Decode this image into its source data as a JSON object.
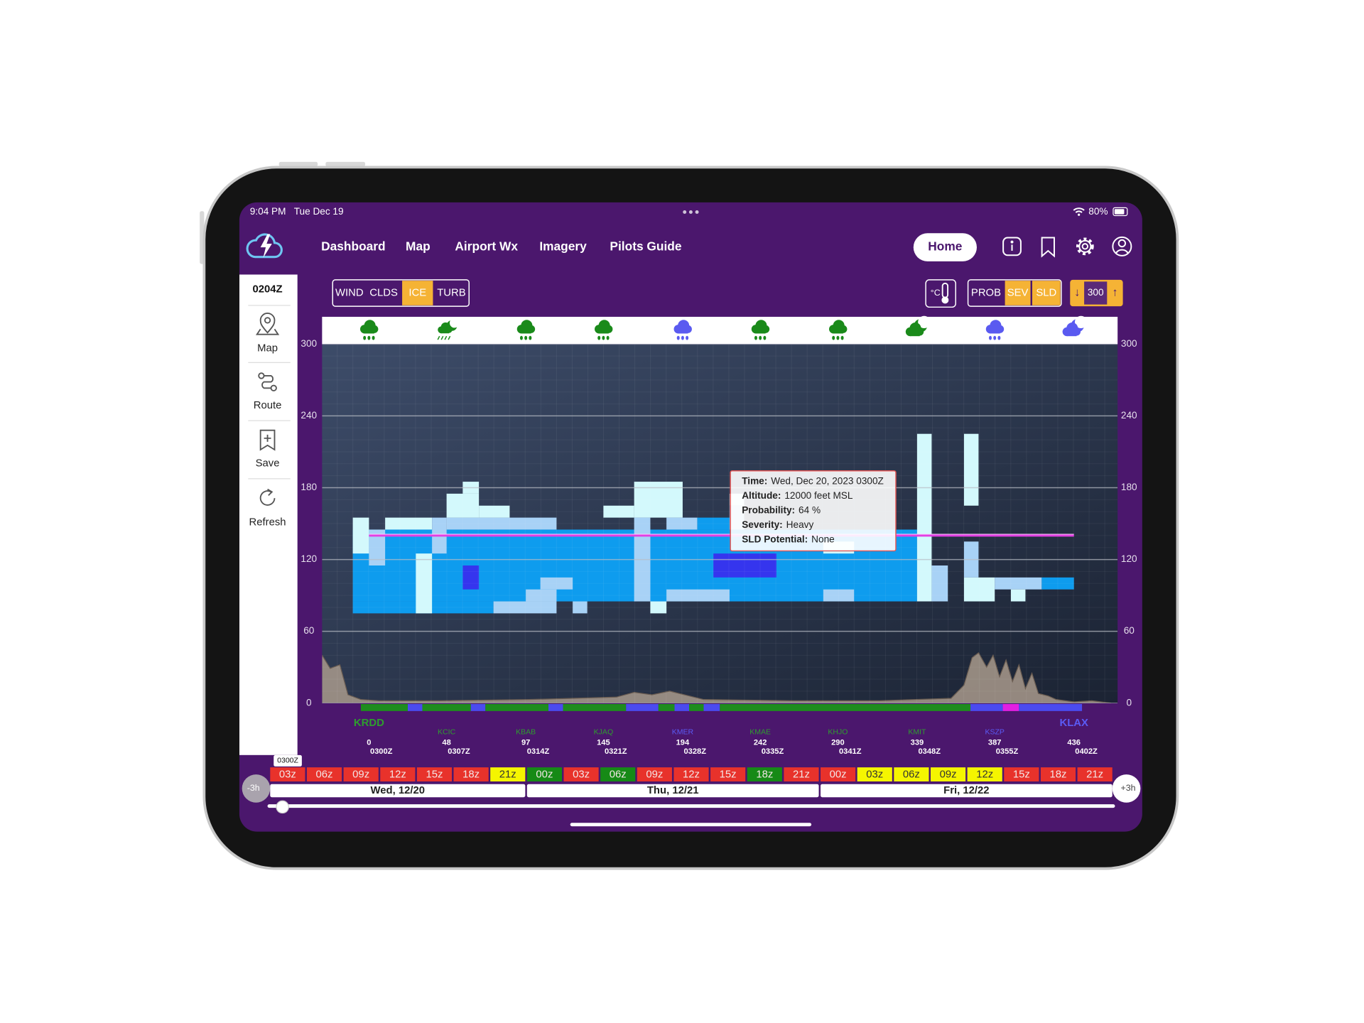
{
  "status_bar": {
    "time": "9:04 PM",
    "date": "Tue Dec 19",
    "battery": "80%"
  },
  "nav": {
    "links": [
      "Dashboard",
      "Map",
      "Airport Wx",
      "Imagery",
      "Pilots Guide"
    ],
    "home": "Home"
  },
  "sidebar": {
    "time": "0204Z",
    "items": [
      "Map",
      "Route",
      "Save",
      "Refresh"
    ]
  },
  "toolbar": {
    "layers": [
      {
        "label": "WIND",
        "active": false
      },
      {
        "label": "CLDS",
        "active": false
      },
      {
        "label": "ICE",
        "active": true
      },
      {
        "label": "TURB",
        "active": false
      }
    ],
    "unit": "°C",
    "modes": [
      {
        "label": "PROB",
        "active": false
      },
      {
        "label": "SEV",
        "active": true
      },
      {
        "label": "SLD",
        "active": true
      }
    ],
    "altitude": {
      "down": "↓",
      "value": "300",
      "up": "↑"
    }
  },
  "chart": {
    "ylim": [
      0,
      300
    ],
    "yticks": [
      0,
      60,
      120,
      180,
      240,
      300
    ],
    "xlim": [
      -29,
      463
    ],
    "grid": true,
    "route_altitude": 140,
    "route_color": "#e23fe2",
    "ice_colors": {
      "trace": "#d3f9fc",
      "light": "#a8d2f6",
      "moderate": "#0e9cee",
      "heavy": "#3535ee"
    },
    "ice": [
      {
        "x": [
          -10,
          339
        ],
        "alt": [
          85,
          145
        ],
        "level": "moderate"
      },
      {
        "x": [
          -10,
          77
        ],
        "alt": [
          75,
          85
        ],
        "level": "moderate"
      },
      {
        "x": [
          203,
          223
        ],
        "alt": [
          145,
          155
        ],
        "level": "moderate"
      },
      {
        "x": [
          416,
          436
        ],
        "alt": [
          95,
          105
        ],
        "level": "moderate"
      },
      {
        "x": [
          -10,
          0
        ],
        "alt": [
          125,
          155
        ],
        "level": "trace"
      },
      {
        "x": [
          0,
          10
        ],
        "alt": [
          115,
          145
        ],
        "level": "light"
      },
      {
        "x": [
          10,
          39
        ],
        "alt": [
          145,
          155
        ],
        "level": "trace"
      },
      {
        "x": [
          29,
          39
        ],
        "alt": [
          75,
          125
        ],
        "level": "trace"
      },
      {
        "x": [
          39,
          48
        ],
        "alt": [
          125,
          155
        ],
        "level": "light"
      },
      {
        "x": [
          48,
          116
        ],
        "alt": [
          145,
          155
        ],
        "level": "light"
      },
      {
        "x": [
          48,
          68
        ],
        "alt": [
          155,
          175
        ],
        "level": "trace"
      },
      {
        "x": [
          58,
          68
        ],
        "alt": [
          175,
          185
        ],
        "level": "trace"
      },
      {
        "x": [
          68,
          87
        ],
        "alt": [
          155,
          165
        ],
        "level": "trace"
      },
      {
        "x": [
          77,
          116
        ],
        "alt": [
          75,
          85
        ],
        "level": "light"
      },
      {
        "x": [
          97,
          116
        ],
        "alt": [
          85,
          95
        ],
        "level": "light"
      },
      {
        "x": [
          106,
          126
        ],
        "alt": [
          95,
          105
        ],
        "level": "light"
      },
      {
        "x": [
          126,
          135
        ],
        "alt": [
          75,
          85
        ],
        "level": "light"
      },
      {
        "x": [
          145,
          164
        ],
        "alt": [
          155,
          165
        ],
        "level": "trace"
      },
      {
        "x": [
          164,
          194
        ],
        "alt": [
          155,
          185
        ],
        "level": "trace"
      },
      {
        "x": [
          164,
          174
        ],
        "alt": [
          85,
          155
        ],
        "level": "light"
      },
      {
        "x": [
          174,
          184
        ],
        "alt": [
          75,
          85
        ],
        "level": "trace"
      },
      {
        "x": [
          184,
          203
        ],
        "alt": [
          145,
          155
        ],
        "level": "light"
      },
      {
        "x": [
          184,
          223
        ],
        "alt": [
          85,
          95
        ],
        "level": "light"
      },
      {
        "x": [
          223,
          232
        ],
        "alt": [
          145,
          165
        ],
        "level": "light"
      },
      {
        "x": [
          223,
          232
        ],
        "alt": [
          165,
          175
        ],
        "level": "trace"
      },
      {
        "x": [
          281,
          300
        ],
        "alt": [
          85,
          95
        ],
        "level": "light"
      },
      {
        "x": [
          281,
          300
        ],
        "alt": [
          125,
          135
        ],
        "level": "trace"
      },
      {
        "x": [
          339,
          348
        ],
        "alt": [
          85,
          225
        ],
        "level": "trace"
      },
      {
        "x": [
          348,
          358
        ],
        "alt": [
          85,
          115
        ],
        "level": "light"
      },
      {
        "x": [
          368,
          377
        ],
        "alt": [
          165,
          225
        ],
        "level": "trace"
      },
      {
        "x": [
          368,
          377
        ],
        "alt": [
          105,
          135
        ],
        "level": "light"
      },
      {
        "x": [
          368,
          387
        ],
        "alt": [
          85,
          105
        ],
        "level": "trace"
      },
      {
        "x": [
          387,
          416
        ],
        "alt": [
          95,
          105
        ],
        "level": "light"
      },
      {
        "x": [
          397,
          406
        ],
        "alt": [
          85,
          95
        ],
        "level": "trace"
      },
      {
        "x": [
          58,
          68
        ],
        "alt": [
          95,
          115
        ],
        "level": "heavy"
      },
      {
        "x": [
          213,
          252
        ],
        "alt": [
          105,
          125
        ],
        "level": "heavy"
      }
    ],
    "terrain": {
      "color": "#a99a8c",
      "x": [
        -29,
        -24,
        -18,
        -13,
        -5,
        6,
        44,
        99,
        153,
        164,
        175,
        186,
        207,
        262,
        316,
        360,
        368,
        373,
        377,
        382,
        386,
        390,
        394,
        398,
        402,
        406,
        410,
        414,
        420,
        425,
        436,
        447,
        459
      ],
      "values": [
        40,
        29,
        32,
        7,
        3,
        2,
        2,
        3,
        5,
        9,
        7,
        10,
        3,
        2,
        2,
        4,
        15,
        38,
        42,
        30,
        40,
        22,
        36,
        18,
        32,
        12,
        25,
        8,
        6,
        3,
        1,
        2,
        0
      ]
    },
    "flight_categories": [
      {
        "from": -5,
        "to": 24,
        "color": "#1e8c1e"
      },
      {
        "from": 24,
        "to": 33,
        "color": "#4b4bef"
      },
      {
        "from": 33,
        "to": 63,
        "color": "#1e8c1e"
      },
      {
        "from": 63,
        "to": 72,
        "color": "#4b4bef"
      },
      {
        "from": 72,
        "to": 111,
        "color": "#1e8c1e"
      },
      {
        "from": 111,
        "to": 120,
        "color": "#4b4bef"
      },
      {
        "from": 120,
        "to": 159,
        "color": "#1e8c1e"
      },
      {
        "from": 159,
        "to": 179,
        "color": "#4b4bef"
      },
      {
        "from": 179,
        "to": 189,
        "color": "#1e8c1e"
      },
      {
        "from": 189,
        "to": 198,
        "color": "#4b4bef"
      },
      {
        "from": 198,
        "to": 207,
        "color": "#1e8c1e"
      },
      {
        "from": 207,
        "to": 217,
        "color": "#4b4bef"
      },
      {
        "from": 217,
        "to": 372,
        "color": "#1e8c1e"
      },
      {
        "from": 372,
        "to": 392,
        "color": "#4b4bef"
      },
      {
        "from": 392,
        "to": 402,
        "color": "#e21fe2"
      },
      {
        "from": 402,
        "to": 441,
        "color": "#4b4bef"
      }
    ],
    "waypoints": [
      {
        "id": "KRDD",
        "distance": 0,
        "time": "0300Z",
        "color": "#2e9e2e"
      },
      {
        "id": "KCIC",
        "distance": 48,
        "time": "0307Z",
        "color": "#2e9e2e"
      },
      {
        "id": "KBAB",
        "distance": 97,
        "time": "0314Z",
        "color": "#2e9e2e"
      },
      {
        "id": "KJAQ",
        "distance": 145,
        "time": "0321Z",
        "color": "#2e9e2e"
      },
      {
        "id": "KMER",
        "distance": 194,
        "time": "0328Z",
        "color": "#5b5bf5"
      },
      {
        "id": "KMAE",
        "distance": 242,
        "time": "0335Z",
        "color": "#2e9e2e"
      },
      {
        "id": "KHJO",
        "distance": 290,
        "time": "0341Z",
        "color": "#2e9e2e"
      },
      {
        "id": "KMIT",
        "distance": 339,
        "time": "0348Z",
        "color": "#2e9e2e"
      },
      {
        "id": "KSZP",
        "distance": 387,
        "time": "0355Z",
        "color": "#5b5bf5"
      },
      {
        "id": "KLAX",
        "distance": 436,
        "time": "0402Z",
        "color": "#5b5bf5"
      }
    ]
  },
  "tooltip": {
    "rows": [
      {
        "label": "Time:",
        "value": "Wed, Dec 20, 2023 0300Z"
      },
      {
        "label": "Altitude:",
        "value": "12000 feet MSL"
      },
      {
        "label": "Probability:",
        "value": "64 %"
      },
      {
        "label": "Severity:",
        "value": "Heavy"
      },
      {
        "label": "SLD Potential:",
        "value": "None"
      }
    ]
  },
  "timeline": {
    "current": "0300Z",
    "back": "-3h",
    "forward": "+3h",
    "cells": [
      {
        "label": "03z",
        "color": "#e8322b"
      },
      {
        "label": "06z",
        "color": "#e8322b"
      },
      {
        "label": "09z",
        "color": "#e8322b"
      },
      {
        "label": "12z",
        "color": "#e8322b"
      },
      {
        "label": "15z",
        "color": "#e8322b"
      },
      {
        "label": "18z",
        "color": "#e8322b"
      },
      {
        "label": "21z",
        "color": "#f5f500"
      },
      {
        "label": "00z",
        "color": "#168a16"
      },
      {
        "label": "03z",
        "color": "#e8322b"
      },
      {
        "label": "06z",
        "color": "#168a16"
      },
      {
        "label": "09z",
        "color": "#e8322b"
      },
      {
        "label": "12z",
        "color": "#e8322b"
      },
      {
        "label": "15z",
        "color": "#e8322b"
      },
      {
        "label": "18z",
        "color": "#168a16"
      },
      {
        "label": "21z",
        "color": "#e8322b"
      },
      {
        "label": "00z",
        "color": "#e8322b"
      },
      {
        "label": "03z",
        "color": "#f5f500"
      },
      {
        "label": "06z",
        "color": "#f5f500"
      },
      {
        "label": "09z",
        "color": "#f5f500"
      },
      {
        "label": "12z",
        "color": "#f5f500"
      },
      {
        "label": "15z",
        "color": "#e8322b"
      },
      {
        "label": "18z",
        "color": "#e8322b"
      },
      {
        "label": "21z",
        "color": "#e8322b"
      }
    ],
    "days": [
      "Wed, 12/20",
      "Thu, 12/21",
      "Fri, 12/22"
    ]
  }
}
